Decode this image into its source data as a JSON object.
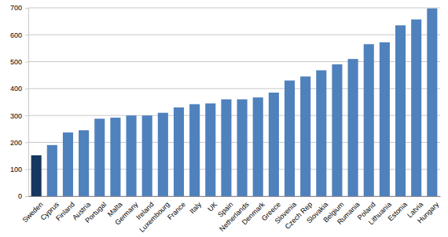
{
  "chart_data": {
    "type": "bar",
    "categories": [
      "Sweden",
      "Cyprus",
      "Finland",
      "Austria",
      "Portugal",
      "Malta",
      "Germany",
      "Ireland",
      "Luxembourg",
      "France",
      "Italy",
      "UK",
      "Spain",
      "Netherlands",
      "Denmark",
      "Greece",
      "Slovenia",
      "Czech Rep",
      "Slovakia",
      "Belgium",
      "Rumania",
      "Poland",
      "Lithuania",
      "Estonia",
      "Latvia",
      "Hungary"
    ],
    "values": [
      152,
      190,
      237,
      245,
      288,
      292,
      300,
      300,
      310,
      330,
      342,
      345,
      360,
      360,
      367,
      385,
      430,
      445,
      468,
      490,
      510,
      565,
      572,
      635,
      657,
      698
    ],
    "colors": [
      "#17375e",
      "#4f81bd",
      "#4f81bd",
      "#4f81bd",
      "#4f81bd",
      "#4f81bd",
      "#4f81bd",
      "#4f81bd",
      "#4f81bd",
      "#4f81bd",
      "#4f81bd",
      "#4f81bd",
      "#4f81bd",
      "#4f81bd",
      "#4f81bd",
      "#4f81bd",
      "#4f81bd",
      "#4f81bd",
      "#4f81bd",
      "#4f81bd",
      "#4f81bd",
      "#4f81bd",
      "#4f81bd",
      "#4f81bd",
      "#4f81bd",
      "#4f81bd"
    ],
    "ylim": [
      0,
      700
    ],
    "yticks": [
      0,
      100,
      200,
      300,
      400,
      500,
      600,
      700
    ],
    "grid": true
  }
}
